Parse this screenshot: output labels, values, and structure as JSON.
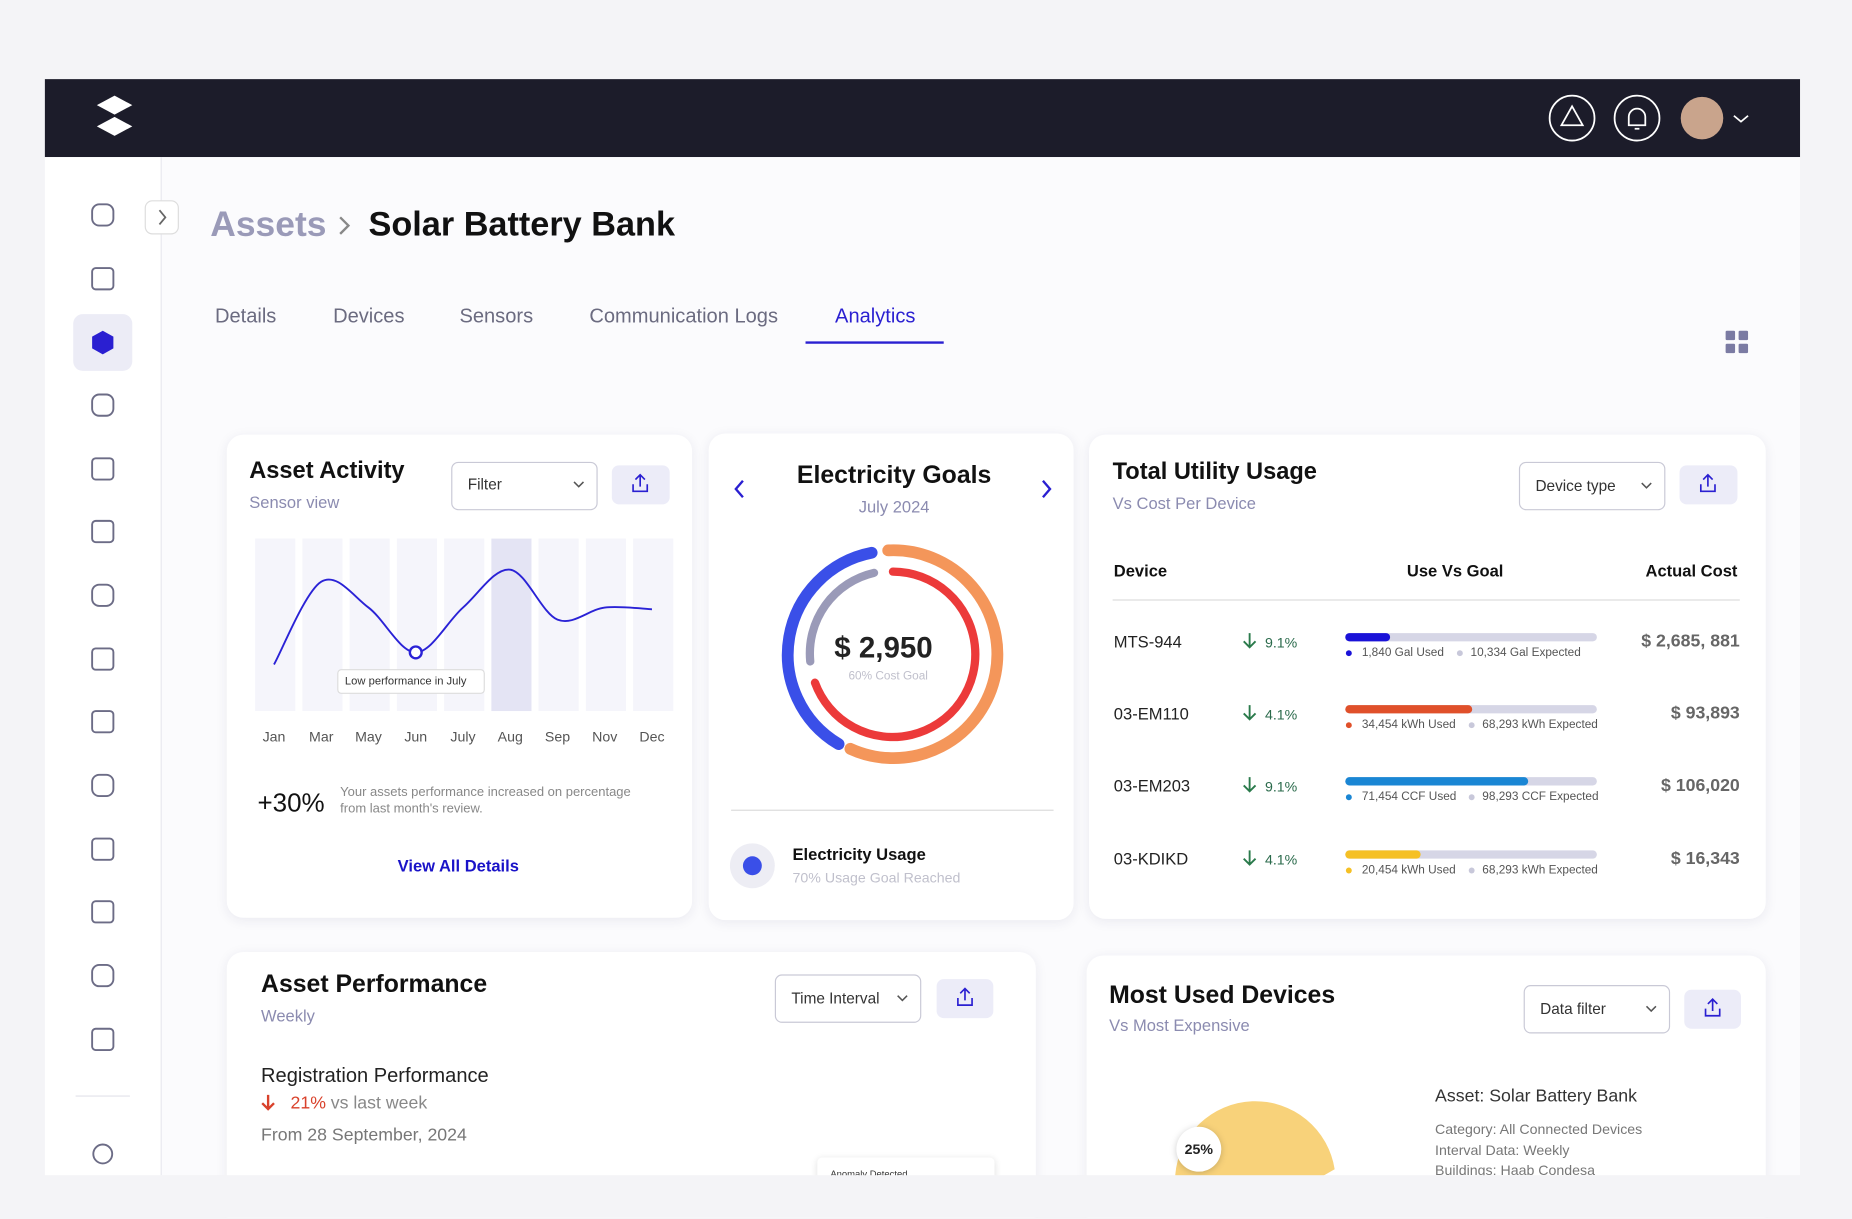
{
  "breadcrumb": {
    "parent": "Assets",
    "current": "Solar Battery Bank"
  },
  "tabs": {
    "items": [
      "Details",
      "Devices",
      "Sensors",
      "Communication Logs",
      "Analytics"
    ],
    "active_index": 4
  },
  "asset_activity": {
    "title": "Asset Activity",
    "subtitle": "Sensor view",
    "filter": "Filter",
    "chart": {
      "type": "line",
      "categories": [
        "Jan",
        "Mar",
        "May",
        "Jun",
        "July",
        "Aug",
        "Sep",
        "Nov",
        "Dec"
      ],
      "values": [
        27,
        75,
        60,
        34,
        60,
        82,
        53,
        60,
        59
      ],
      "ylim": [
        0,
        100
      ],
      "color": "#2a22d6",
      "highlight_index": 5,
      "marker_index": 3,
      "annotation": "Low performance in July"
    },
    "change": "+30%",
    "change_note": "Your assets performance increased on percentage from last month's review.",
    "link": "View All Details"
  },
  "electricity_goals": {
    "title": "Electricity Goals",
    "period": "July 2024",
    "amount": "$ 2,950",
    "amount_note": "60% Cost Goal",
    "usage_title": "Electricity Usage",
    "usage_note": "70% Usage Goal Reached"
  },
  "utility_usage": {
    "title": "Total Utility Usage",
    "subtitle": "Vs Cost Per Device",
    "filter": "Device type",
    "columns": [
      "Device",
      "Use Vs Goal",
      "Actual Cost"
    ],
    "rows": [
      {
        "device": "MTS-944",
        "change": "9.1%",
        "used": 1840,
        "used_label": "1,840 Gal Used",
        "expected": 10334,
        "expected_label": "10,334 Gal Expected",
        "cost": "$ 2,685, 881",
        "color": "#1a12d8"
      },
      {
        "device": "03-EM110",
        "change": "4.1%",
        "used": 34454,
        "used_label": "34,454 kWh Used",
        "expected": 68293,
        "expected_label": "68,293 kWh Expected",
        "cost": "$ 93,893",
        "color": "#e0502a"
      },
      {
        "device": "03-EM203",
        "change": "9.1%",
        "used": 71454,
        "used_label": "71,454 CCF Used",
        "expected": 98293,
        "expected_label": "98,293 CCF Expected",
        "cost": "$ 106,020",
        "color": "#1a86d4"
      },
      {
        "device": "03-KDIKD",
        "change": "4.1%",
        "used": 20454,
        "used_label": "20,454 kWh Used",
        "expected": 68293,
        "expected_label": "68,293 kWh Expected",
        "cost": "$ 16,343",
        "color": "#f5c025"
      }
    ]
  },
  "asset_performance": {
    "title": "Asset Performance",
    "subtitle": "Weekly",
    "filter": "Time Interval",
    "metric": "Registration Performance",
    "change": "21%",
    "change_note": "vs last week",
    "from": "From 28 September, 2024",
    "anomaly": "Anomaly Detected"
  },
  "most_used": {
    "title": "Most Used Devices",
    "subtitle": "Vs Most Expensive",
    "filter": "Data filter",
    "slice_label": "25%",
    "asset": "Asset: Solar Battery Bank",
    "details": [
      "Category: All Connected Devices",
      "Interval Data: Weekly",
      "Buildings: Haab Condesa"
    ]
  }
}
